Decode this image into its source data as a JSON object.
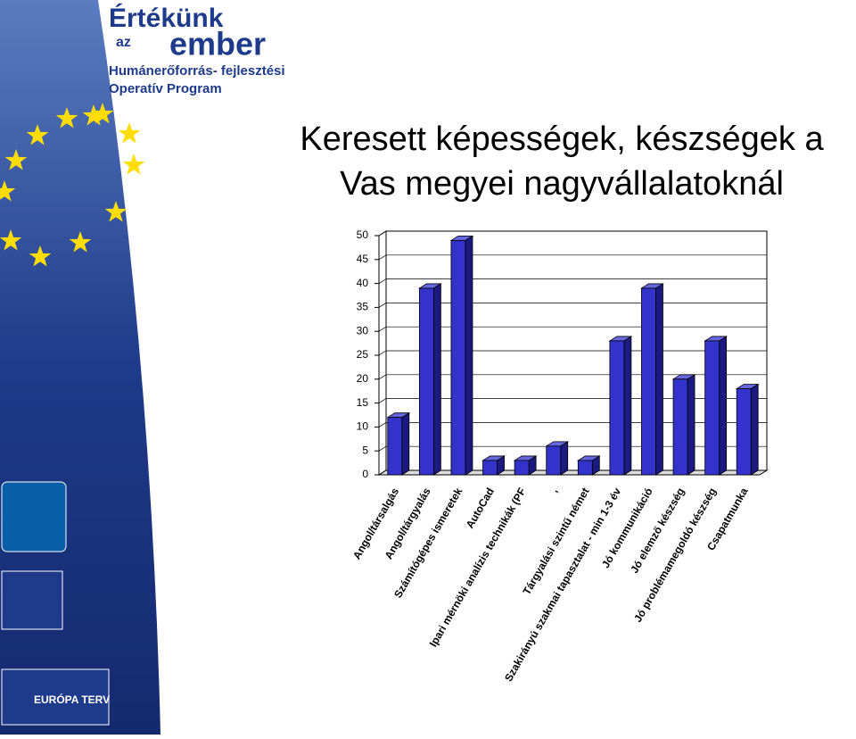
{
  "logo": {
    "line1": "Értékünk",
    "line2": "az",
    "line3": "ember",
    "line4": "Humánerőforrás- fejlesztési",
    "line5": "Operatív Program",
    "footer": "EURÓPA TERV"
  },
  "chart_data": {
    "type": "bar3d",
    "title": [
      "Keresett képességek, készségek a",
      "Vas megyei nagyvállalatoknál"
    ],
    "categories": [
      "Angol/társalgás",
      "Angol/tárgyalás",
      "Számítógépes ismeretek",
      "AutoCad",
      "Ipari mérnöki analízis technikák (PF",
      ",",
      "Tárgyalási szintű német",
      "Szakirányú szakmai tapasztalat - min 1-3 év",
      "Jó kommunikáció",
      "Jó elemző készség",
      "Jó problémamegoldó készség",
      "Csapatmunka"
    ],
    "values": [
      12,
      39,
      49,
      3,
      3,
      6,
      3,
      28,
      39,
      20,
      28,
      18
    ],
    "color": "#3333cc",
    "ylim": [
      0,
      50
    ],
    "yticks": [
      0,
      5,
      10,
      15,
      20,
      25,
      30,
      35,
      40,
      45,
      50
    ],
    "grid": true
  }
}
